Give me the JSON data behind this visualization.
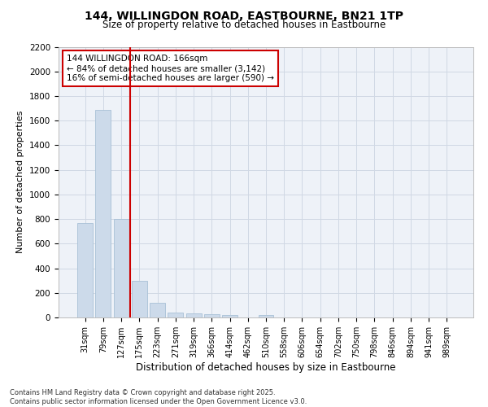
{
  "title_line1": "144, WILLINGDON ROAD, EASTBOURNE, BN21 1TP",
  "title_line2": "Size of property relative to detached houses in Eastbourne",
  "xlabel": "Distribution of detached houses by size in Eastbourne",
  "ylabel": "Number of detached properties",
  "categories": [
    "31sqm",
    "79sqm",
    "127sqm",
    "175sqm",
    "223sqm",
    "271sqm",
    "319sqm",
    "366sqm",
    "414sqm",
    "462sqm",
    "510sqm",
    "558sqm",
    "606sqm",
    "654sqm",
    "702sqm",
    "750sqm",
    "798sqm",
    "846sqm",
    "894sqm",
    "941sqm",
    "989sqm"
  ],
  "values": [
    770,
    1690,
    800,
    300,
    120,
    40,
    35,
    25,
    20,
    0,
    20,
    0,
    0,
    0,
    0,
    0,
    0,
    0,
    0,
    0,
    0
  ],
  "bar_color": "#ccdaea",
  "bar_edge_color": "#a8c0d6",
  "grid_color": "#d0d8e4",
  "bg_color": "#f0f4f8",
  "plot_bg_color": "#eef2f8",
  "vline_x": 2.5,
  "vline_color": "#cc0000",
  "annotation_text": "144 WILLINGDON ROAD: 166sqm\n← 84% of detached houses are smaller (3,142)\n16% of semi-detached houses are larger (590) →",
  "annotation_box_color": "#cc0000",
  "ylim": [
    0,
    2200
  ],
  "yticks": [
    0,
    200,
    400,
    600,
    800,
    1000,
    1200,
    1400,
    1600,
    1800,
    2000,
    2200
  ],
  "footer_line1": "Contains HM Land Registry data © Crown copyright and database right 2025.",
  "footer_line2": "Contains public sector information licensed under the Open Government Licence v3.0.",
  "figsize": [
    6.0,
    5.0
  ],
  "dpi": 100
}
